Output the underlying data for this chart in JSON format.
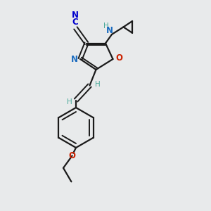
{
  "bg_color": "#e8eaeb",
  "bond_color": "#1a1a1a",
  "N_color": "#1a6bbf",
  "O_color": "#cc2200",
  "CN_color": "#0000cc",
  "H_color": "#4aaa99",
  "figsize": [
    3.0,
    3.0
  ],
  "dpi": 100,
  "xlim": [
    0,
    10
  ],
  "ylim": [
    0,
    10
  ]
}
